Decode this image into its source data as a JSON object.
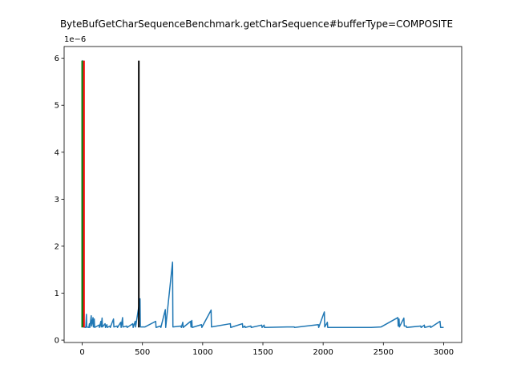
{
  "chart_data": {
    "type": "line",
    "title": "ByteBufGetCharSequenceBenchmark.getCharSequence#bufferType=COMPOSITE",
    "y_offset_label": "1e−6",
    "xlim": [
      -150,
      3150
    ],
    "ylim": [
      -5e-08,
      6.25e-06
    ],
    "x_ticks": [
      0,
      500,
      1000,
      1500,
      2000,
      2500,
      3000
    ],
    "x_tick_labels": [
      "0",
      "500",
      "1000",
      "1500",
      "2000",
      "2500",
      "3000"
    ],
    "y_ticks": [
      0,
      1e-06,
      2e-06,
      3e-06,
      4e-06,
      5e-06,
      6e-06
    ],
    "y_tick_labels": [
      "0",
      "1",
      "2",
      "3",
      "4",
      "5",
      "6"
    ],
    "grid": false,
    "series": [
      {
        "color": "#1f77b4",
        "baseline": 2.7e-07,
        "points": [
          [
            0,
            5.95e-06
          ],
          [
            3,
            5.95e-06
          ],
          [
            5,
            3e-07
          ],
          [
            10,
            2.8e-07
          ],
          [
            30,
            2.7e-07
          ],
          [
            35,
            5.5e-07
          ],
          [
            38,
            2.8e-07
          ],
          [
            55,
            2.7e-07
          ],
          [
            60,
            3.5e-07
          ],
          [
            63,
            2.7e-07
          ],
          [
            75,
            5.2e-07
          ],
          [
            78,
            3e-07
          ],
          [
            90,
            4.8e-07
          ],
          [
            93,
            2.8e-07
          ],
          [
            100,
            4.5e-07
          ],
          [
            103,
            2.7e-07
          ],
          [
            140,
            3.2e-07
          ],
          [
            143,
            2.7e-07
          ],
          [
            155,
            4e-07
          ],
          [
            158,
            2.8e-07
          ],
          [
            165,
            4.7e-07
          ],
          [
            168,
            2.8e-07
          ],
          [
            190,
            3.5e-07
          ],
          [
            193,
            2.7e-07
          ],
          [
            205,
            3.3e-07
          ],
          [
            208,
            2.7e-07
          ],
          [
            230,
            3e-07
          ],
          [
            233,
            2.7e-07
          ],
          [
            260,
            4.5e-07
          ],
          [
            263,
            2.8e-07
          ],
          [
            290,
            3e-07
          ],
          [
            293,
            2.7e-07
          ],
          [
            320,
            3.8e-07
          ],
          [
            323,
            2.7e-07
          ],
          [
            335,
            4.8e-07
          ],
          [
            338,
            2.8e-07
          ],
          [
            370,
            3e-07
          ],
          [
            373,
            2.7e-07
          ],
          [
            420,
            3.5e-07
          ],
          [
            423,
            2.7e-07
          ],
          [
            440,
            4e-07
          ],
          [
            443,
            2.8e-07
          ],
          [
            480,
            8.8e-07
          ],
          [
            483,
            2.8e-07
          ],
          [
            520,
            2.8e-07
          ],
          [
            610,
            4e-07
          ],
          [
            613,
            2.7e-07
          ],
          [
            650,
            3e-07
          ],
          [
            653,
            2.7e-07
          ],
          [
            690,
            6.5e-07
          ],
          [
            693,
            2.7e-07
          ],
          [
            750,
            1.66e-06
          ],
          [
            753,
            2.8e-07
          ],
          [
            820,
            3e-07
          ],
          [
            823,
            2.7e-07
          ],
          [
            835,
            3.8e-07
          ],
          [
            838,
            2.7e-07
          ],
          [
            900,
            4e-07
          ],
          [
            903,
            2.8e-07
          ],
          [
            910,
            4.2e-07
          ],
          [
            913,
            2.7e-07
          ],
          [
            990,
            3.3e-07
          ],
          [
            993,
            2.7e-07
          ],
          [
            1070,
            6.4e-07
          ],
          [
            1073,
            2.8e-07
          ],
          [
            1230,
            3.5e-07
          ],
          [
            1233,
            2.7e-07
          ],
          [
            1330,
            3.5e-07
          ],
          [
            1333,
            2.7e-07
          ],
          [
            1350,
            3e-07
          ],
          [
            1353,
            2.7e-07
          ],
          [
            1400,
            3e-07
          ],
          [
            1403,
            2.7e-07
          ],
          [
            1490,
            3.2e-07
          ],
          [
            1493,
            2.7e-07
          ],
          [
            1510,
            3.2e-07
          ],
          [
            1513,
            2.7e-07
          ],
          [
            1700,
            2.8e-07
          ],
          [
            1760,
            2.8e-07
          ],
          [
            1763,
            2.7e-07
          ],
          [
            1960,
            3.3e-07
          ],
          [
            1963,
            2.7e-07
          ],
          [
            2010,
            6e-07
          ],
          [
            2013,
            2.8e-07
          ],
          [
            2035,
            3.8e-07
          ],
          [
            2038,
            2.7e-07
          ],
          [
            2400,
            2.7e-07
          ],
          [
            2480,
            2.8e-07
          ],
          [
            2620,
            4.8e-07
          ],
          [
            2623,
            3e-07
          ],
          [
            2630,
            4.5e-07
          ],
          [
            2633,
            2.8e-07
          ],
          [
            2670,
            4.7e-07
          ],
          [
            2673,
            3e-07
          ],
          [
            2690,
            3e-07
          ],
          [
            2693,
            2.7e-07
          ],
          [
            2810,
            3e-07
          ],
          [
            2813,
            2.7e-07
          ],
          [
            2840,
            3.2e-07
          ],
          [
            2843,
            2.7e-07
          ],
          [
            2890,
            3e-07
          ],
          [
            2893,
            2.7e-07
          ],
          [
            2970,
            4e-07
          ],
          [
            2975,
            2.7e-07
          ],
          [
            3000,
            2.7e-07
          ]
        ]
      }
    ],
    "vertical_lines": [
      {
        "color": "#008000",
        "x": 0,
        "y0": 2.7e-07,
        "y1": 5.95e-06
      },
      {
        "color": "#ff0000",
        "x": 15,
        "y0": 2.7e-07,
        "y1": 5.95e-06
      },
      {
        "color": "#000000",
        "x": 470,
        "y0": 2.7e-07,
        "y1": 5.95e-06
      }
    ]
  }
}
